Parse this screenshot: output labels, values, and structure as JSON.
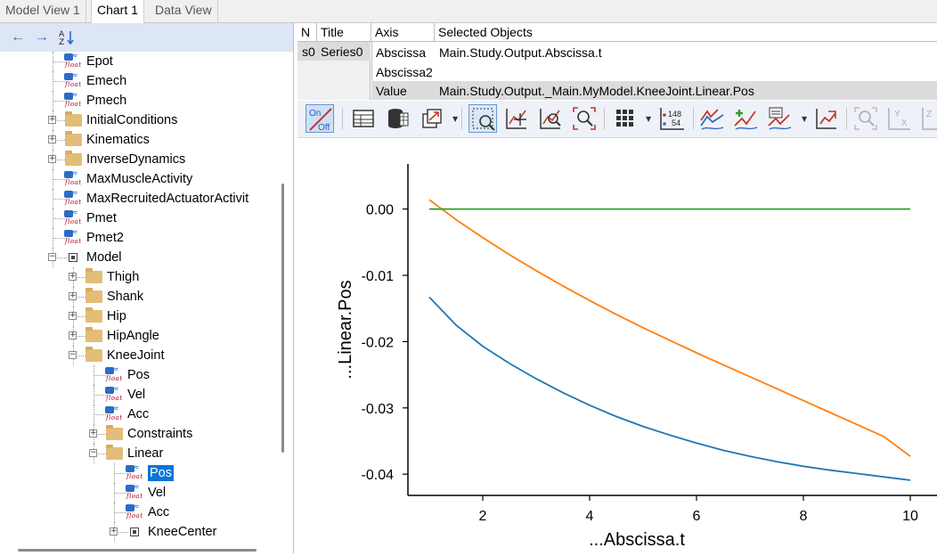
{
  "tabs": [
    {
      "label": "Model View 1",
      "active": false
    },
    {
      "label": "Chart 1",
      "active": true
    },
    {
      "label": "Data View",
      "active": false
    }
  ],
  "left_toolbar": {
    "back_icon": "arrow-left-icon",
    "forward_icon": "arrow-right-icon",
    "sort_icon": "sort-az-icon"
  },
  "tree": [
    {
      "label": "Epot",
      "depth": 3,
      "kind": "float"
    },
    {
      "label": "Emech",
      "depth": 3,
      "kind": "float"
    },
    {
      "label": "Pmech",
      "depth": 3,
      "kind": "float"
    },
    {
      "label": "InitialConditions",
      "depth": 3,
      "kind": "folder",
      "expander": "+"
    },
    {
      "label": "Kinematics",
      "depth": 3,
      "kind": "folder",
      "expander": "+"
    },
    {
      "label": "InverseDynamics",
      "depth": 3,
      "kind": "folder",
      "expander": "+"
    },
    {
      "label": "MaxMuscleActivity",
      "depth": 3,
      "kind": "float"
    },
    {
      "label": "MaxRecruitedActuatorActivit",
      "depth": 3,
      "kind": "float"
    },
    {
      "label": "Pmet",
      "depth": 3,
      "kind": "float"
    },
    {
      "label": "Pmet2",
      "depth": 3,
      "kind": "float"
    },
    {
      "label": "Model",
      "depth": 3,
      "kind": "model",
      "expander": "−"
    },
    {
      "label": "Thigh",
      "depth": 4,
      "kind": "folder",
      "expander": "+"
    },
    {
      "label": "Shank",
      "depth": 4,
      "kind": "folder",
      "expander": "+"
    },
    {
      "label": "Hip",
      "depth": 4,
      "kind": "folder",
      "expander": "+"
    },
    {
      "label": "HipAngle",
      "depth": 4,
      "kind": "folder",
      "expander": "+"
    },
    {
      "label": "KneeJoint",
      "depth": 4,
      "kind": "folder",
      "expander": "−"
    },
    {
      "label": "Pos",
      "depth": 5,
      "kind": "float"
    },
    {
      "label": "Vel",
      "depth": 5,
      "kind": "float"
    },
    {
      "label": "Acc",
      "depth": 5,
      "kind": "float"
    },
    {
      "label": "Constraints",
      "depth": 5,
      "kind": "folder",
      "expander": "+"
    },
    {
      "label": "Linear",
      "depth": 5,
      "kind": "folder",
      "expander": "−"
    },
    {
      "label": "Pos",
      "depth": 6,
      "kind": "float",
      "selected": true
    },
    {
      "label": "Vel",
      "depth": 6,
      "kind": "float"
    },
    {
      "label": "Acc",
      "depth": 6,
      "kind": "float"
    },
    {
      "label": "KneeCenter",
      "depth": 6,
      "kind": "model",
      "expander": "+"
    }
  ],
  "series_table": {
    "headers": {
      "n": "N",
      "title": "Title"
    },
    "rows": [
      {
        "n": "s0",
        "title": "Series0"
      }
    ]
  },
  "axis_table": {
    "headers": {
      "axis": "Axis",
      "objects": "Selected Objects"
    },
    "rows": [
      {
        "axis": "Abscissa",
        "objects": "Main.Study.Output.Abscissa.t"
      },
      {
        "axis": "Abscissa2",
        "objects": ""
      },
      {
        "axis": "Value",
        "objects": "Main.Study.Output._Main.MyModel.KneeJoint.Linear.Pos"
      }
    ]
  },
  "toolbar": {
    "onoff": {
      "on": "On",
      "off": "Off"
    },
    "counter": {
      "top": "148",
      "bottom": "54"
    },
    "icons": [
      "onoff-toggle-icon",
      "table-view-icon",
      "database-icon",
      "export-icon",
      "zoom-box-icon",
      "pan-icon",
      "zoom-in-icon",
      "zoom-fit-icon",
      "grid-icon",
      "data-counter-icon",
      "line-style-icon",
      "add-series-icon",
      "series-list-icon",
      "refresh-chart-icon",
      "zoom-disabled-icon",
      "y-axis-disabled-icon",
      "z-axis-disabled-icon"
    ]
  },
  "colors": {
    "accent": "#0a74d8",
    "series_blue": "#1f77b4",
    "series_orange": "#ff7f0e",
    "series_green": "#2ca02c"
  },
  "chart_data": {
    "type": "line",
    "title": "",
    "xlabel": "...Abscissa.t",
    "ylabel": "...Linear.Pos",
    "xlim": [
      0.6,
      10.5
    ],
    "ylim": [
      -0.0432,
      0.0068
    ],
    "xticks": [
      2,
      4,
      6,
      8,
      10
    ],
    "yticks": [
      0.0,
      -0.01,
      -0.02,
      -0.03,
      -0.04
    ],
    "ytick_labels": [
      "0.00",
      "-0.01",
      "-0.02",
      "-0.03",
      "-0.04"
    ],
    "grid": false,
    "series": [
      {
        "color": "#1f77b4",
        "x": [
          1,
          1.5,
          2,
          2.5,
          3,
          3.5,
          4,
          4.5,
          5,
          5.5,
          6,
          6.5,
          7,
          7.5,
          8,
          8.5,
          9,
          9.5,
          10
        ],
        "y": [
          -0.0133,
          -0.0175,
          -0.0207,
          -0.0233,
          -0.0256,
          -0.0277,
          -0.0296,
          -0.0313,
          -0.0328,
          -0.0341,
          -0.0353,
          -0.0364,
          -0.0373,
          -0.0381,
          -0.0388,
          -0.0394,
          -0.0399,
          -0.0404,
          -0.0409
        ]
      },
      {
        "color": "#ff7f0e",
        "x": [
          1,
          1.5,
          2,
          2.5,
          3,
          3.5,
          4,
          4.5,
          5,
          5.5,
          6,
          6.5,
          7,
          7.5,
          8,
          8.5,
          9,
          9.5,
          10
        ],
        "y": [
          0.0014,
          -0.0016,
          -0.0043,
          -0.0069,
          -0.0093,
          -0.0116,
          -0.0138,
          -0.0159,
          -0.0179,
          -0.0198,
          -0.0217,
          -0.0235,
          -0.0253,
          -0.0271,
          -0.0289,
          -0.0307,
          -0.0325,
          -0.0343,
          -0.0373
        ]
      },
      {
        "color": "#2ca02c",
        "x": [
          1,
          10
        ],
        "y": [
          0.0,
          0.0
        ]
      }
    ]
  }
}
